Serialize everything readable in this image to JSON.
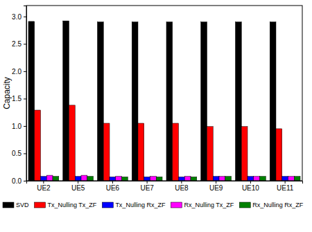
{
  "chart_data": {
    "type": "bar",
    "y_label": "Capacity",
    "categories": [
      "UE2",
      "UE5",
      "UE6",
      "UE7",
      "UE8",
      "UE9",
      "UE10",
      "UE11"
    ],
    "series": [
      {
        "name": "SVD",
        "color": "#000000",
        "values": [
          2.91,
          2.92,
          2.9,
          2.9,
          2.9,
          2.9,
          2.9,
          2.9
        ]
      },
      {
        "name": "Tx_Nulling Tx_ZF",
        "color": "#ff0000",
        "values": [
          1.29,
          1.38,
          1.05,
          1.05,
          1.05,
          0.99,
          0.99,
          0.95
        ]
      },
      {
        "name": "Tx_Nulling Rx_ZF",
        "color": "#0000ff",
        "values": [
          0.08,
          0.08,
          0.07,
          0.07,
          0.07,
          0.08,
          0.08,
          0.08
        ]
      },
      {
        "name": "Rx_Nulling Tx_ZF",
        "color": "#ff00ff",
        "values": [
          0.1,
          0.1,
          0.08,
          0.08,
          0.08,
          0.08,
          0.08,
          0.08
        ]
      },
      {
        "name": "Rx_Nulling Rx_ZF",
        "color": "#008000",
        "values": [
          0.08,
          0.08,
          0.07,
          0.07,
          0.07,
          0.08,
          0.08,
          0.08
        ]
      }
    ],
    "ylim": [
      0,
      3.2
    ],
    "yticks": [
      {
        "value": 0,
        "label": "0.0"
      },
      {
        "value": 0.5,
        "label": "0.5"
      },
      {
        "value": 1,
        "label": "1.0"
      },
      {
        "value": 1.5,
        "label": "1.5"
      },
      {
        "value": 2,
        "label": "2.0"
      },
      {
        "value": 2.5,
        "label": "2.5"
      },
      {
        "value": 3,
        "label": "3.0"
      }
    ],
    "legend": "bottom"
  }
}
